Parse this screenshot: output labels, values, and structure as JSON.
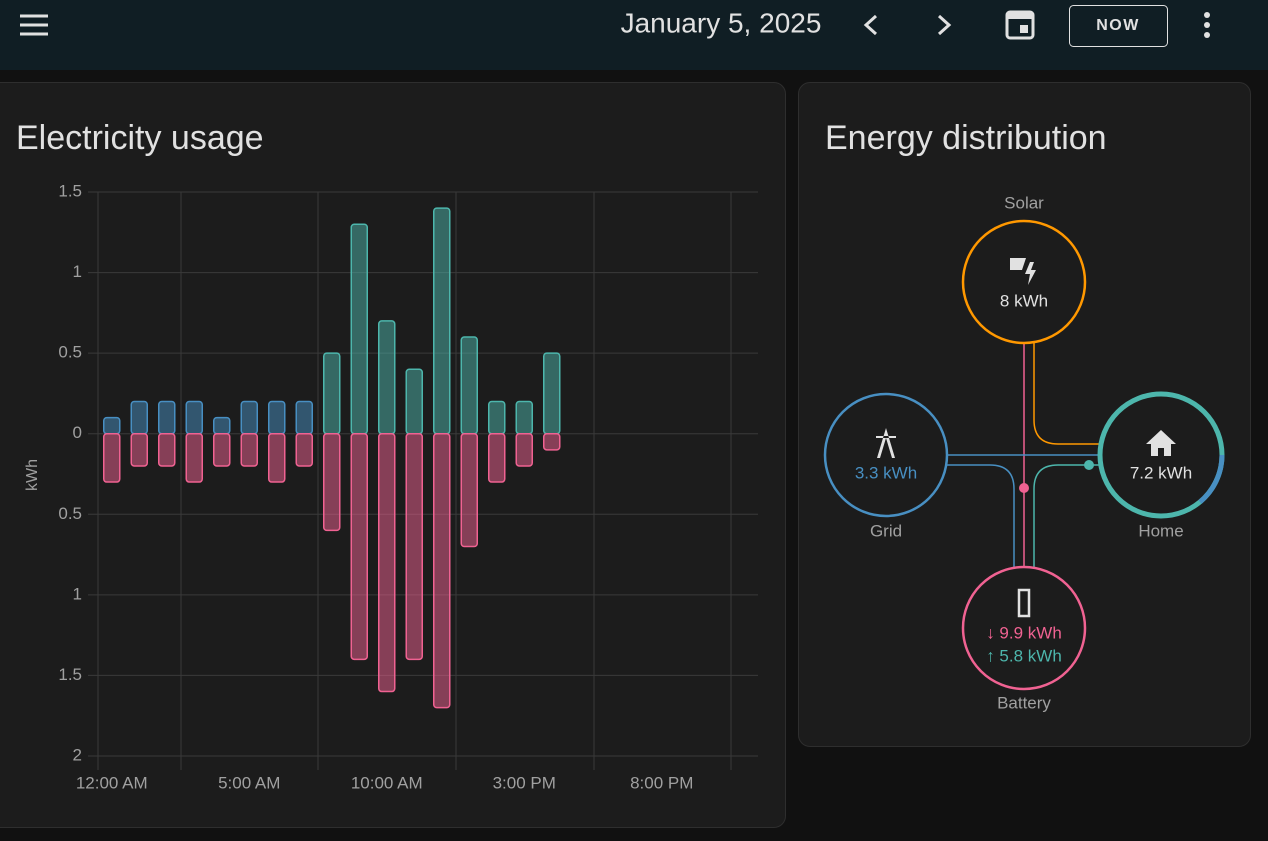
{
  "header": {
    "date": "January 5, 2025",
    "now_button": "NOW"
  },
  "chart_data": {
    "type": "bar",
    "stacked": true,
    "title": "Electricity usage",
    "y_label": "kWh",
    "categories": [
      "12:00 AM",
      null,
      null,
      null,
      null,
      "5:00 AM",
      null,
      null,
      null,
      null,
      "10:00 AM",
      null,
      null,
      null,
      null,
      "3:00 PM",
      null,
      null,
      null,
      null,
      "8:00 PM",
      null,
      null,
      null
    ],
    "series": [
      {
        "color": "#488fc2",
        "values": [
          0.1,
          0.2,
          0.2,
          0.2,
          0.1,
          0.2,
          0.2,
          0.2,
          null,
          null,
          null,
          null,
          null,
          null,
          null,
          null,
          null,
          null,
          null,
          null,
          null,
          null,
          null,
          null
        ]
      },
      {
        "color": "#4db6ac",
        "values": [
          null,
          null,
          null,
          null,
          null,
          null,
          null,
          null,
          0.5,
          1.3,
          0.7,
          0.4,
          1.4,
          0.6,
          0.2,
          0.2,
          0.5,
          null,
          null,
          null,
          null,
          null,
          null,
          null
        ]
      },
      {
        "color": "#f06292",
        "values": [
          -0.3,
          -0.2,
          -0.2,
          -0.3,
          -0.2,
          -0.2,
          -0.3,
          -0.2,
          -0.6,
          -1.4,
          -1.6,
          -1.4,
          -1.7,
          -0.7,
          -0.3,
          -0.2,
          -0.1,
          null,
          null,
          null,
          null,
          null,
          null,
          null
        ]
      }
    ],
    "ylim": [
      -2,
      1.5
    ],
    "yticks": [
      1.5,
      1,
      0.5,
      0,
      {
        "value": -0.5,
        "label": "0.5"
      },
      {
        "value": -1,
        "label": "1"
      },
      {
        "value": -1.5,
        "label": "1.5"
      },
      {
        "value": -2,
        "label": "2"
      }
    ],
    "grid": true
  },
  "distribution": {
    "title": "Energy distribution",
    "solar": {
      "label": "Solar",
      "value": "8 kWh"
    },
    "grid": {
      "label": "Grid",
      "value": "3.3 kWh"
    },
    "home": {
      "label": "Home",
      "value": "7.2 kWh"
    },
    "battery": {
      "label": "Battery",
      "value_in": "↓ 9.9 kWh",
      "value_out": "↑ 5.8 kWh"
    }
  }
}
